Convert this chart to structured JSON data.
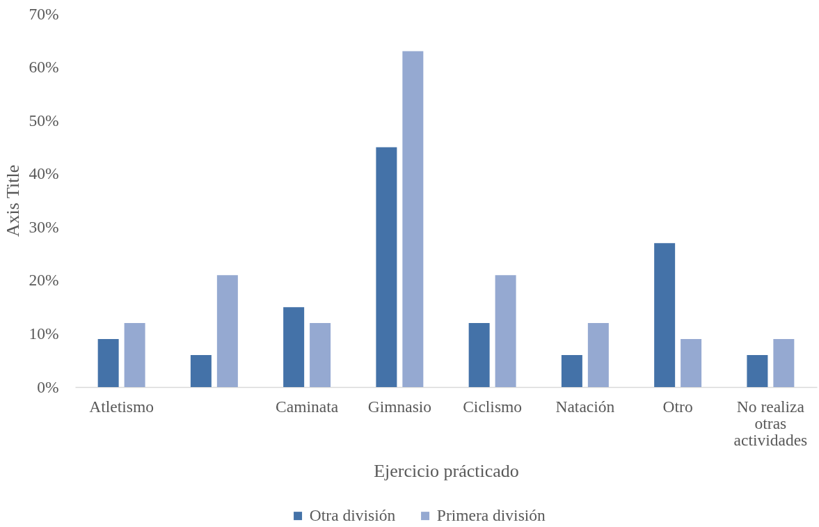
{
  "chart_data": {
    "type": "bar",
    "xlabel": "Ejercicio prácticado",
    "ylabel": "Axis Title",
    "categories": [
      "Atletismo",
      null,
      "Caminata",
      "Gimnasio",
      "Ciclismo",
      "Natación",
      "Otro",
      "No realiza otras actividades"
    ],
    "series": [
      {
        "name": "Otra división",
        "color": "#4472a8",
        "values": [
          9,
          6,
          15,
          45,
          12,
          6,
          27,
          6
        ]
      },
      {
        "name": "Primera división",
        "color": "#95a9d1",
        "values": [
          12,
          21,
          12,
          63,
          21,
          12,
          9,
          9
        ]
      }
    ],
    "ylim": [
      0,
      70
    ],
    "yticks": [
      {
        "value": 0,
        "label": "0%"
      },
      {
        "value": 10,
        "label": "10%"
      },
      {
        "value": 20,
        "label": "20%"
      },
      {
        "value": 30,
        "label": "30%"
      },
      {
        "value": 40,
        "label": "40%"
      },
      {
        "value": 50,
        "label": "50%"
      },
      {
        "value": 60,
        "label": "60%"
      },
      {
        "value": 70,
        "label": "70%"
      }
    ],
    "grid": false,
    "legend": "bottom"
  }
}
